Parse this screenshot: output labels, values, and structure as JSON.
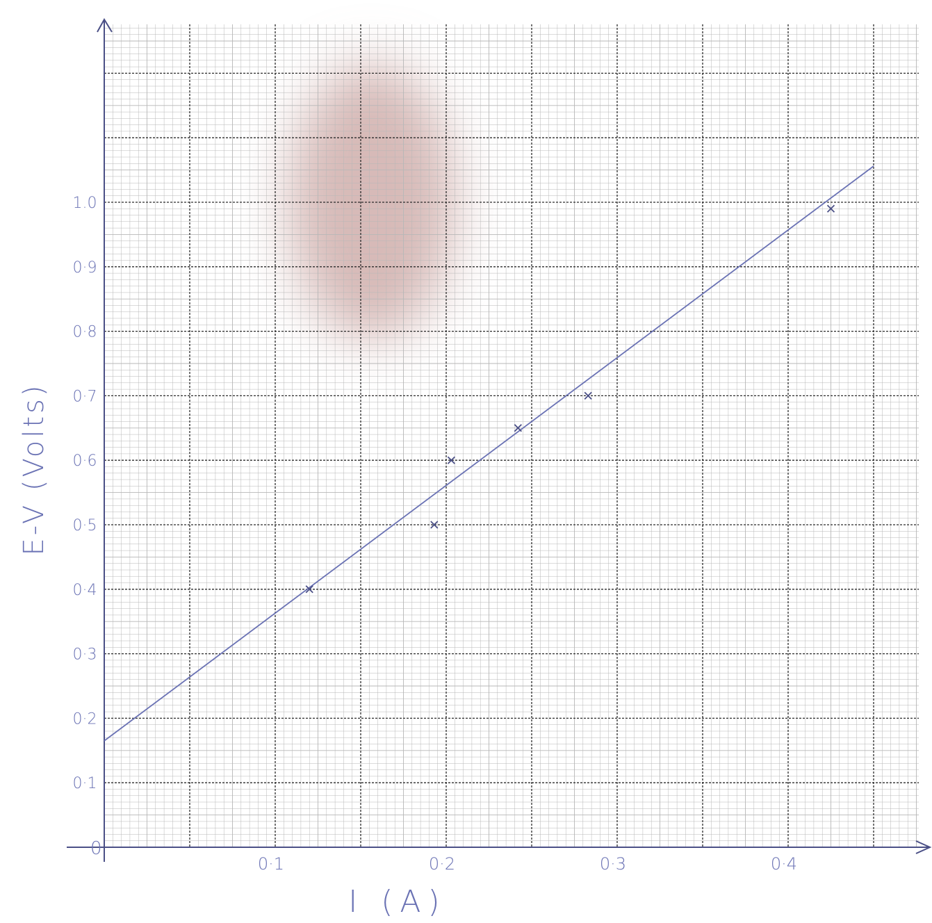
{
  "colors": {
    "paper": "#ffffff",
    "grid_minor": "#b7b7b7",
    "grid_major": "#2b2b2b",
    "ink": "#6a72b4",
    "axis": "#4a4f86",
    "stain": "#c9a3a0"
  },
  "chart_data": {
    "type": "scatter",
    "title": "",
    "xlabel": "I (A)",
    "ylabel": "E-V (Volts)",
    "xlim": [
      0,
      0.45
    ],
    "ylim": [
      0,
      1.05
    ],
    "grid": true,
    "x_ticks": [
      0.1,
      0.2,
      0.3,
      0.4
    ],
    "x_tick_labels": [
      "0·1",
      "0·2",
      "0·3",
      "0·4"
    ],
    "y_ticks": [
      0.1,
      0.2,
      0.3,
      0.4,
      0.5,
      0.6,
      0.7,
      0.8,
      0.9,
      1.0
    ],
    "y_tick_labels": [
      "0·1",
      "0·2",
      "0·3",
      "0·4",
      "0·5",
      "0·6",
      "0·7",
      "0·8",
      "0·9",
      "1.0"
    ],
    "origin_label": "0",
    "points": [
      {
        "x": 0.12,
        "y": 0.4
      },
      {
        "x": 0.193,
        "y": 0.5
      },
      {
        "x": 0.203,
        "y": 0.6
      },
      {
        "x": 0.242,
        "y": 0.65
      },
      {
        "x": 0.283,
        "y": 0.7
      },
      {
        "x": 0.425,
        "y": 0.99
      }
    ],
    "best_fit": {
      "intercept": 0.165,
      "slope": 1.98,
      "x_range": [
        0.0,
        0.45
      ]
    }
  }
}
